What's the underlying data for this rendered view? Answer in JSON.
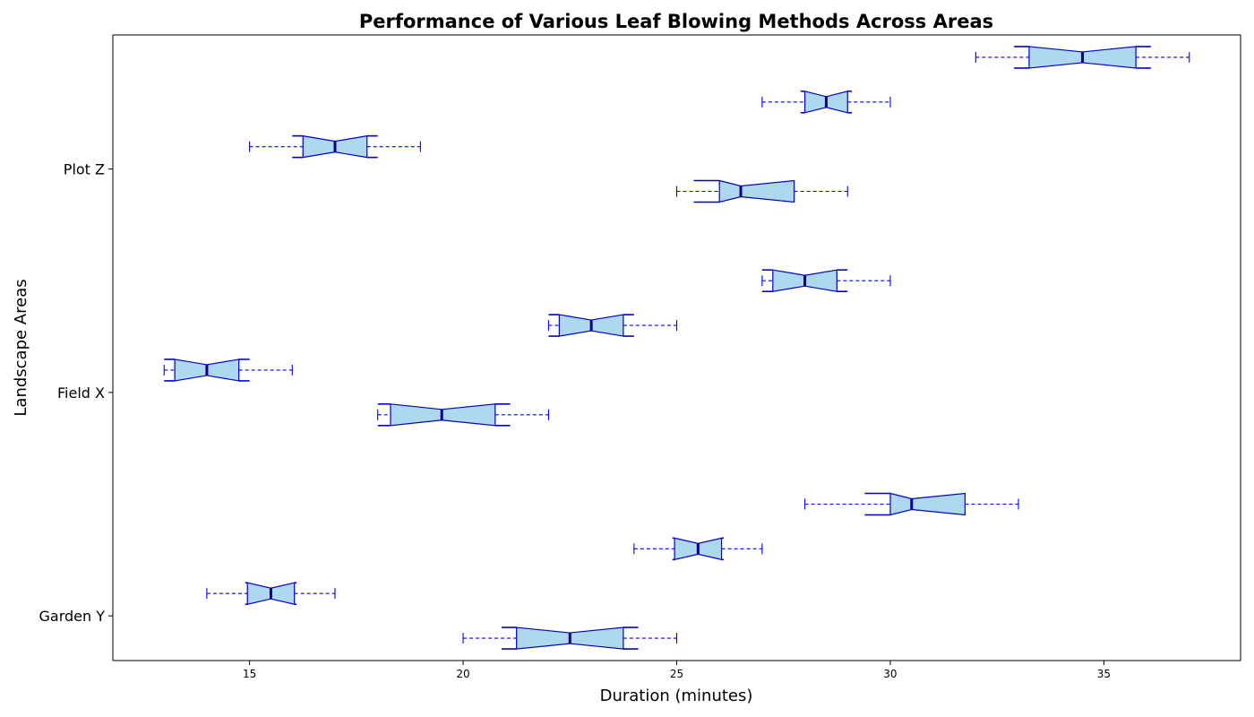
{
  "chart_data": {
    "type": "boxplot",
    "orientation": "horizontal",
    "notched": true,
    "title": "Performance of Various Leaf Blowing Methods Across Areas",
    "xlabel": "Duration (minutes)",
    "ylabel": "Landscape Areas",
    "xlim": [
      11.8,
      38.2
    ],
    "xticks": [
      15,
      20,
      25,
      30,
      35
    ],
    "ytick_labels": [
      "Garden Y",
      "Field X",
      "Plot Z"
    ],
    "ytick_positions": [
      1.5,
      6.5,
      11.5
    ],
    "ylim": [
      0.5,
      14.5
    ],
    "grid": false,
    "colors": {
      "box_fill": "#add8f0",
      "box_edge": "#0000cd",
      "whisker": "#0000ff",
      "median": "#00008b"
    },
    "boxes": [
      {
        "pos": 1,
        "whislo": 20,
        "q1": 21.25,
        "med": 22.5,
        "q3": 23.75,
        "whishi": 25,
        "notch_lo": 20.9,
        "notch_hi": 24.1
      },
      {
        "pos": 2,
        "whislo": 14,
        "q1": 14.95,
        "med": 15.5,
        "q3": 16.05,
        "whishi": 17,
        "notch_lo": 14.9,
        "notch_hi": 16.1
      },
      {
        "pos": 3,
        "whislo": 24,
        "q1": 24.95,
        "med": 25.5,
        "q3": 26.05,
        "whishi": 27,
        "notch_lo": 24.9,
        "notch_hi": 26.1
      },
      {
        "pos": 4,
        "whislo": 28,
        "q1": 30.0,
        "med": 30.5,
        "q3": 31.75,
        "whishi": 33,
        "notch_lo": 29.4,
        "notch_hi": 31.75
      },
      {
        "pos": 6,
        "whislo": 18,
        "q1": 18.3,
        "med": 19.5,
        "q3": 20.75,
        "whishi": 22,
        "notch_lo": 18.0,
        "notch_hi": 21.1
      },
      {
        "pos": 7,
        "whislo": 13,
        "q1": 13.25,
        "med": 14.0,
        "q3": 14.75,
        "whishi": 16,
        "notch_lo": 13.0,
        "notch_hi": 15.0
      },
      {
        "pos": 8,
        "whislo": 22,
        "q1": 22.25,
        "med": 23.0,
        "q3": 23.75,
        "whishi": 25,
        "notch_lo": 22.0,
        "notch_hi": 24.0
      },
      {
        "pos": 9,
        "whislo": 27,
        "q1": 27.25,
        "med": 28.0,
        "q3": 28.75,
        "whishi": 30,
        "notch_lo": 27.0,
        "notch_hi": 29.0
      },
      {
        "pos": 11,
        "whislo": 25,
        "q1": 26.0,
        "med": 26.5,
        "q3": 27.75,
        "whishi": 29,
        "notch_lo": 25.4,
        "notch_hi": 27.75
      },
      {
        "pos": 12,
        "whislo": 15,
        "q1": 16.25,
        "med": 17.0,
        "q3": 17.75,
        "whishi": 19,
        "notch_lo": 16.0,
        "notch_hi": 18.0
      },
      {
        "pos": 13,
        "whislo": 27,
        "q1": 28.0,
        "med": 28.5,
        "q3": 29.0,
        "whishi": 30,
        "notch_lo": 27.9,
        "notch_hi": 29.1
      },
      {
        "pos": 14,
        "whislo": 32,
        "q1": 33.25,
        "med": 34.5,
        "q3": 35.75,
        "whishi": 37,
        "notch_lo": 32.9,
        "notch_hi": 36.1
      }
    ]
  }
}
